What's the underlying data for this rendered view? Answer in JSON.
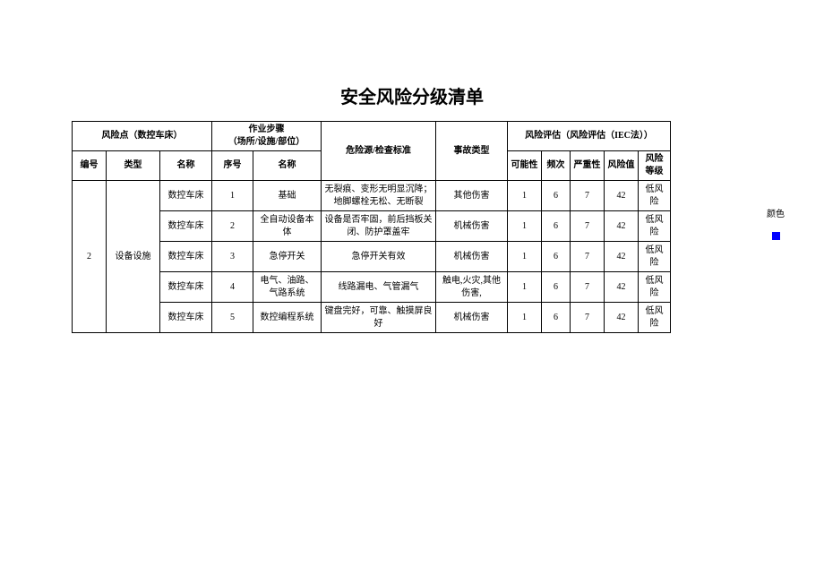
{
  "title": "安全风险分级清单",
  "header": {
    "risk_point_group": "风险点（数控车床）",
    "work_step_group": "作业步骤",
    "work_step_sub": "（场所/设施/部位）",
    "hazard_source": "危险源/检查标准",
    "accident_type": "事故类型",
    "risk_eval_group": "风险评估（风险评估（IEC法））",
    "number": "编号",
    "type": "类型",
    "name1": "名称",
    "seq": "序号",
    "name2": "名称",
    "likelihood": "可能性",
    "frequency": "频次",
    "severity": "严重性",
    "risk_value": "风险值",
    "risk_level": "风险\n等级"
  },
  "body": {
    "number": "2",
    "type": "设备设施",
    "rows": [
      {
        "name": "数控车床",
        "seq": "1",
        "step": "基础",
        "hazard": "无裂痕、变形无明显沉降；地脚螺栓无松、无断裂",
        "accident": "其他伤害",
        "like": "1",
        "freq": "6",
        "sev": "7",
        "val": "42",
        "level": "低风险"
      },
      {
        "name": "数控车床",
        "seq": "2",
        "step": "全自动设备本体",
        "hazard": "设备是否牢固，前后挡板关闭、防护罩盖牢",
        "accident": "机械伤害",
        "like": "1",
        "freq": "6",
        "sev": "7",
        "val": "42",
        "level": "低风险"
      },
      {
        "name": "数控车床",
        "seq": "3",
        "step": "急停开关",
        "hazard": "急停开关有效",
        "accident": "机械伤害",
        "like": "1",
        "freq": "6",
        "sev": "7",
        "val": "42",
        "level": "低风险"
      },
      {
        "name": "数控车床",
        "seq": "4",
        "step": "电气、油路、气路系统",
        "hazard": "线路漏电、气管漏气",
        "accident": "触电,火灾,其他伤害,",
        "like": "1",
        "freq": "6",
        "sev": "7",
        "val": "42",
        "level": "低风险"
      },
      {
        "name": "数控车床",
        "seq": "5",
        "step": "数控编程系统",
        "hazard": "键盘完好，可靠、触摸屏良好",
        "accident": "机械伤害",
        "like": "1",
        "freq": "6",
        "sev": "7",
        "val": "42",
        "level": "低风险"
      }
    ]
  },
  "extra": {
    "color_label": "颜色",
    "color_value": "#0000ff"
  },
  "columns": {
    "c_number": 38,
    "c_type": 60,
    "c_name1": 58,
    "c_seq": 46,
    "c_name2": 76,
    "c_hazard": 128,
    "c_accident": 80,
    "c_like": 38,
    "c_freq": 32,
    "c_sev": 38,
    "c_val": 38,
    "c_level": 36
  }
}
